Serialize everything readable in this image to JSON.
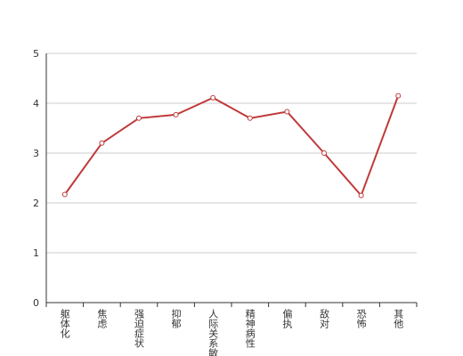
{
  "chart_data": {
    "type": "line",
    "categories": [
      "躯体化",
      "焦虑",
      "强迫症状",
      "抑郁",
      "人际关系敏感",
      "精神病性",
      "偏执",
      "敌对",
      "恐怖",
      "其他"
    ],
    "series": [
      {
        "color": "#c0393a",
        "values": [
          2.17,
          3.2,
          3.7,
          3.77,
          4.11,
          3.7,
          3.83,
          3.0,
          2.15,
          4.15
        ]
      }
    ],
    "ylim": [
      0,
      5
    ],
    "yticks": [
      0,
      1,
      2,
      3,
      4,
      5
    ],
    "grid": true
  }
}
